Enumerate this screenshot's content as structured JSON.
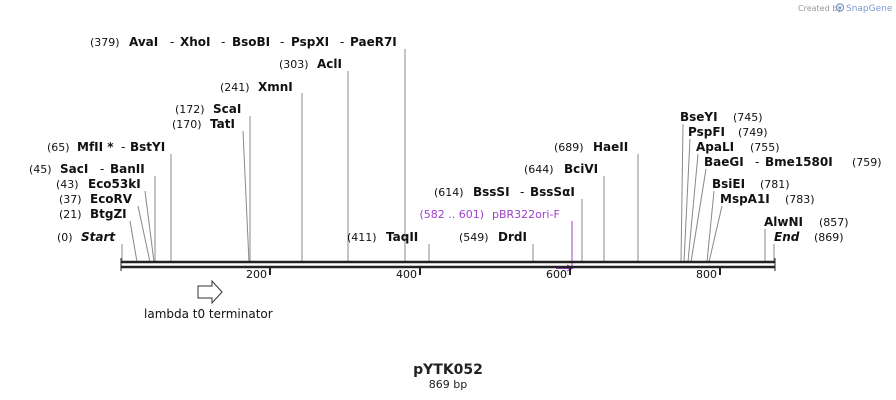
{
  "credit": {
    "prefix": "Created by",
    "brand": "SnapGene"
  },
  "plasmid": {
    "name": "pYTK052",
    "length": "869 bp"
  },
  "scale": {
    "ticks": [
      "200",
      "400",
      "600",
      "800"
    ]
  },
  "features": [
    {
      "label": "lambda t0 terminator"
    }
  ],
  "primer": {
    "range": "(582 .. 601)",
    "name": "pBR322ori-F"
  },
  "sites": [
    {
      "pos": "(379)",
      "names": [
        "AvaI",
        "XhoI",
        "BsoBI",
        "PspXI",
        "PaeR7I"
      ]
    },
    {
      "pos": "(303)",
      "names": [
        "AclI"
      ]
    },
    {
      "pos": "(241)",
      "names": [
        "XmnI"
      ]
    },
    {
      "pos": "(172)",
      "names": [
        "ScaI"
      ]
    },
    {
      "pos": "(170)",
      "names": [
        "TatI"
      ]
    },
    {
      "pos": "(65)",
      "names": [
        "MfII *",
        "BstYI"
      ]
    },
    {
      "pos": "(45)",
      "names": [
        "SacI",
        "BanII"
      ]
    },
    {
      "pos": "(43)",
      "names": [
        "Eco53kI"
      ]
    },
    {
      "pos": "(37)",
      "names": [
        "EcoRV"
      ]
    },
    {
      "pos": "(21)",
      "names": [
        "BtgZI"
      ]
    },
    {
      "pos": "(0)",
      "names": [
        "Start"
      ]
    },
    {
      "pos": "(411)",
      "names": [
        "TaqII"
      ]
    },
    {
      "pos": "(549)",
      "names": [
        "DrdI"
      ]
    },
    {
      "pos": "(614)",
      "names": [
        "BssSI",
        "BssSαI"
      ]
    },
    {
      "pos": "(644)",
      "names": [
        "BciVI"
      ]
    },
    {
      "pos": "(689)",
      "names": [
        "HaeII"
      ]
    },
    {
      "pos": "(745)",
      "names": [
        "BseYI"
      ]
    },
    {
      "pos": "(749)",
      "names": [
        "PspFI"
      ]
    },
    {
      "pos": "(755)",
      "names": [
        "ApaLI"
      ]
    },
    {
      "pos": "(759)",
      "names": [
        "BaeGI",
        "Bme1580I"
      ]
    },
    {
      "pos": "(781)",
      "names": [
        "BsiEI"
      ]
    },
    {
      "pos": "(783)",
      "names": [
        "MspA1I"
      ]
    },
    {
      "pos": "(857)",
      "names": [
        "AlwNI"
      ]
    },
    {
      "pos": "(869)",
      "names": [
        "End"
      ]
    }
  ],
  "colors": {
    "primer": "#a040cc",
    "backbone": "#222222",
    "leader": "#888888"
  }
}
